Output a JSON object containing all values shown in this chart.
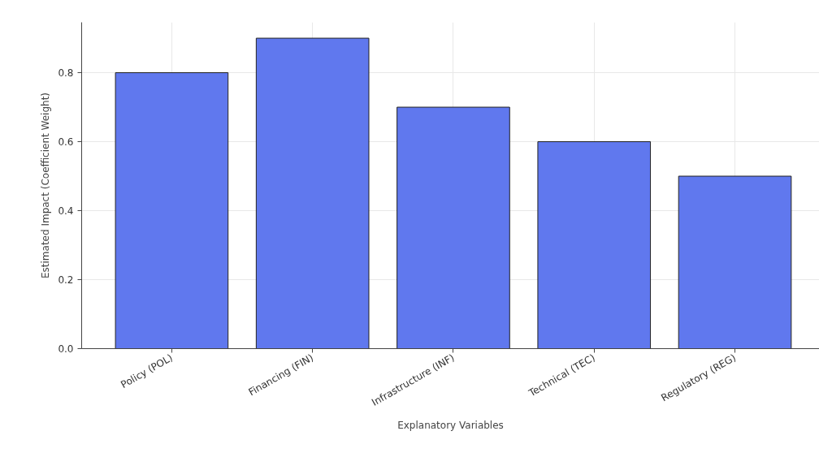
{
  "chart_data": {
    "type": "bar",
    "xlabel": "Explanatory Variables",
    "ylabel": "Estimated Impact (Coefficient Weight)",
    "categories": [
      "Policy (POL)",
      "Financing (FIN)",
      "Infrastructure (INF)",
      "Technical (TEC)",
      "Regulatory (REG)"
    ],
    "values": [
      0.8,
      0.9,
      0.7,
      0.6,
      0.5
    ],
    "color": "#6078ee",
    "ylim": [
      0,
      0.946
    ],
    "yticks": [
      {
        "value": 0,
        "label": "0.0"
      },
      {
        "value": 0.2,
        "label": "0.2"
      },
      {
        "value": 0.4,
        "label": "0.4"
      },
      {
        "value": 0.6,
        "label": "0.6"
      },
      {
        "value": 0.8,
        "label": "0.8"
      }
    ],
    "grid": true
  }
}
